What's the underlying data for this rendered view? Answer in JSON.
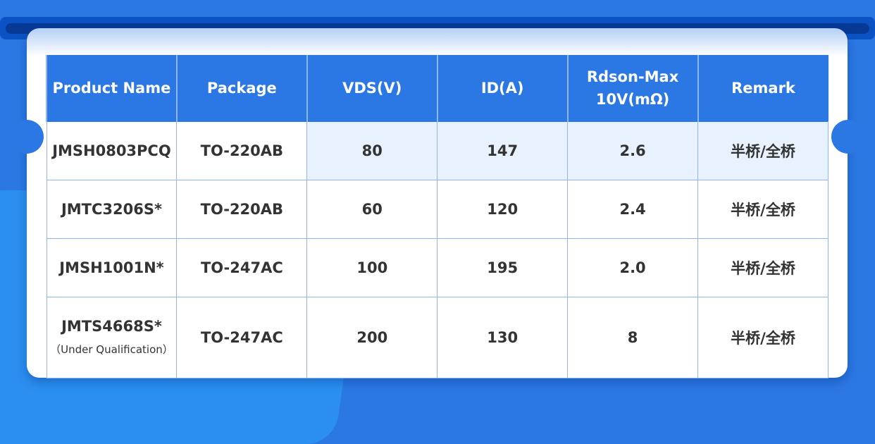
{
  "table": {
    "headers": [
      "Product Name",
      "Package",
      "VDS(V)",
      "ID(A)",
      "Rdson-Max",
      "10V(mΩ)",
      "Remark"
    ],
    "rows": [
      {
        "name": "JMSH0803PCQ",
        "package": "TO-220AB",
        "vds": "80",
        "id": "147",
        "rdson": "2.6",
        "remark": "半桥/全桥"
      },
      {
        "name": "JMTC3206S*",
        "package": "TO-220AB",
        "vds": "60",
        "id": "120",
        "rdson": "2.4",
        "remark": "半桥/全桥"
      },
      {
        "name": "JMSH1001N*",
        "package": "TO-247AC",
        "vds": "100",
        "id": "195",
        "rdson": "2.0",
        "remark": "半桥/全桥"
      },
      {
        "name": "JMTS4668S*",
        "note": "（Under Qualification）",
        "package": "TO-247AC",
        "vds": "200",
        "id": "130",
        "rdson": "8",
        "remark": "半桥/全桥"
      }
    ]
  },
  "colors": {
    "accent": "#2b78e4",
    "highlight": "#e8f2fe"
  }
}
